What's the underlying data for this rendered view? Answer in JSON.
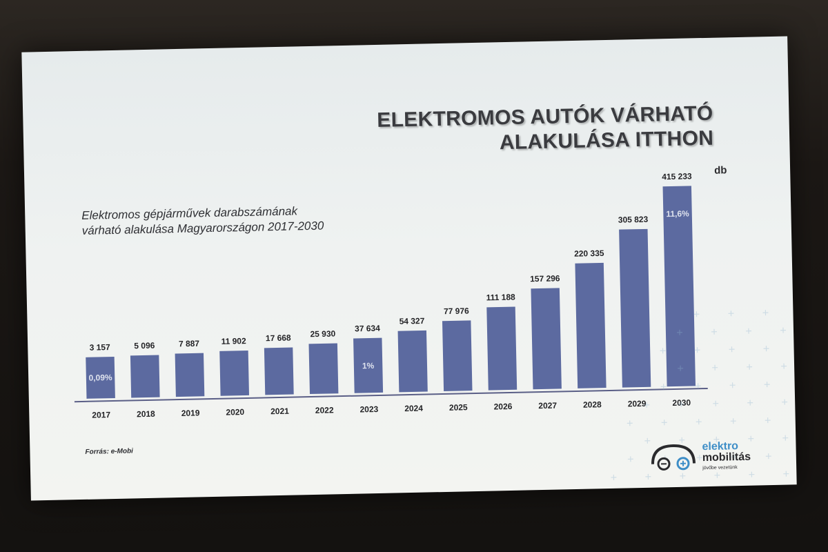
{
  "slide": {
    "title_line1": "ELEKTROMOS AUTÓK VÁRHATÓ",
    "title_line2": "ALAKULÁSA ITTHON",
    "subtitle": "Elektromos gépjárművek darabszámának\nvárható alakulása Magyarországon 2017-2030",
    "unit": "db",
    "source": "Forrás: e-Mobi",
    "logo": {
      "line1": "elektro",
      "line2": "mobilitás",
      "tagline": "jövőbe vezetünk"
    }
  },
  "colors": {
    "bar": "#5c6aa0",
    "axis": "#5a5e86",
    "bar_label": "#dfe3ee"
  },
  "chart_data": {
    "type": "bar",
    "categories": [
      "2017",
      "2018",
      "2019",
      "2020",
      "2021",
      "2022",
      "2023",
      "2024",
      "2025",
      "2026",
      "2027",
      "2028",
      "2029",
      "2030"
    ],
    "values": [
      3157,
      5096,
      7887,
      11902,
      17668,
      25930,
      37634,
      54327,
      77976,
      111188,
      157296,
      220335,
      305823,
      415233
    ],
    "value_labels": [
      "3 157",
      "5 096",
      "7 887",
      "11 902",
      "17 668",
      "25 930",
      "37 634",
      "54 327",
      "77 976",
      "111 188",
      "157 296",
      "220 335",
      "305 823",
      "415 233"
    ],
    "bar_annotations": [
      {
        "category": "2017",
        "text": "0,09%"
      },
      {
        "category": "2023",
        "text": "1%"
      },
      {
        "category": "2030",
        "text": "11,6%"
      }
    ],
    "title": "ELEKTROMOS AUTÓK VÁRHATÓ ALAKULÁSA ITTHON",
    "xlabel": "",
    "ylabel": "db",
    "grid": false,
    "legend": "none"
  }
}
